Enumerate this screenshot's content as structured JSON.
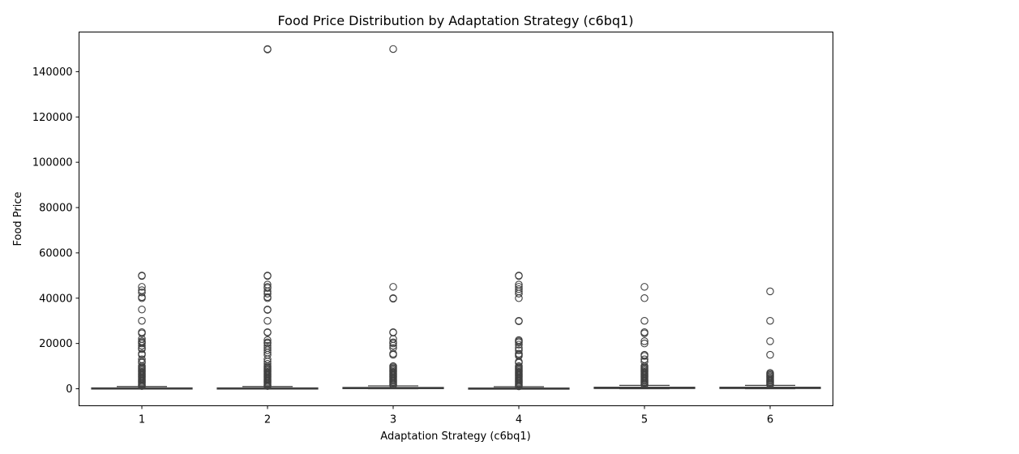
{
  "chart_data": {
    "type": "box",
    "title": "Food Price Distribution by Adaptation Strategy (c6bq1)",
    "xlabel": "Adaptation Strategy (c6bq1)",
    "ylabel": "Food Price",
    "categories": [
      "1",
      "2",
      "3",
      "4",
      "5",
      "6"
    ],
    "y_ticks": [
      0,
      20000,
      40000,
      60000,
      80000,
      100000,
      120000,
      140000
    ],
    "y_tick_labels": [
      "0",
      "20000",
      "40000",
      "60000",
      "80000",
      "100000",
      "120000",
      "140000"
    ],
    "ylim": [
      -7500,
      157500
    ],
    "grid": false,
    "box_color": "#4c72b0",
    "line_color": "#3f3f3f",
    "boxes": [
      {
        "category": "1",
        "whisker_low": 0,
        "q1": 50,
        "median": 200,
        "q3": 400,
        "whisker_high": 1000,
        "outliers": [
          50000,
          49800,
          45000,
          43500,
          42500,
          40500,
          40000,
          35000,
          30000,
          25000,
          24500,
          22000,
          21000,
          20500,
          20000,
          19000,
          18000,
          17500,
          15500,
          15000,
          13000,
          12000,
          11500,
          10000,
          9500,
          9000,
          8500,
          8000,
          7500,
          7000,
          6500,
          6000,
          5500,
          5000,
          4500,
          4000,
          3500,
          3000,
          2500,
          2000,
          1500,
          1200
        ]
      },
      {
        "category": "2",
        "whisker_low": 0,
        "q1": 50,
        "median": 200,
        "q3": 400,
        "whisker_high": 1000,
        "outliers": [
          150000,
          149800,
          50000,
          49800,
          46000,
          45000,
          44500,
          43000,
          42000,
          40500,
          40000,
          35000,
          34800,
          30000,
          25000,
          24800,
          21500,
          20500,
          20000,
          19000,
          18000,
          17000,
          16000,
          15000,
          13000,
          12000,
          11000,
          10000,
          9500,
          9000,
          8500,
          8000,
          7500,
          7000,
          6500,
          6000,
          5500,
          5000,
          4500,
          4000,
          3500,
          3000,
          2500,
          2000,
          1500,
          1200
        ]
      },
      {
        "category": "3",
        "whisker_low": 0,
        "q1": 50,
        "median": 300,
        "q3": 600,
        "whisker_high": 1300,
        "outliers": [
          150000,
          45000,
          40000,
          39800,
          25000,
          24800,
          22000,
          20500,
          20000,
          19000,
          18000,
          15500,
          15000,
          10000,
          9500,
          9000,
          8500,
          8000,
          7500,
          7000,
          6500,
          6000,
          5500,
          5000,
          4500,
          4000,
          3500,
          3000,
          2500,
          2000,
          1600
        ]
      },
      {
        "category": "4",
        "whisker_low": 0,
        "q1": 50,
        "median": 150,
        "q3": 350,
        "whisker_high": 900,
        "outliers": [
          50000,
          49800,
          46000,
          45000,
          44000,
          43000,
          42000,
          40000,
          30000,
          29800,
          21500,
          21000,
          20500,
          19500,
          18000,
          17000,
          15500,
          15000,
          14500,
          12000,
          11500,
          10000,
          9500,
          9000,
          8500,
          8000,
          7500,
          7000,
          6500,
          6000,
          5500,
          5000,
          4500,
          4000,
          3500,
          3000,
          2500,
          2000,
          1500,
          1100
        ]
      },
      {
        "category": "5",
        "whisker_low": 0,
        "q1": 100,
        "median": 400,
        "q3": 700,
        "whisker_high": 1500,
        "outliers": [
          45000,
          40000,
          30000,
          25000,
          24500,
          21000,
          20000,
          15000,
          14500,
          13000,
          12000,
          10000,
          9500,
          9000,
          8500,
          8000,
          7500,
          7000,
          6500,
          6000,
          5500,
          5000,
          4500,
          4000,
          3500,
          3000,
          2500,
          2000,
          1800
        ]
      },
      {
        "category": "6",
        "whisker_low": 0,
        "q1": 100,
        "median": 400,
        "q3": 700,
        "whisker_high": 1500,
        "outliers": [
          43000,
          30000,
          21000,
          15000,
          7000,
          6500,
          6000,
          5500,
          5000,
          4500,
          4000,
          3500,
          3000,
          2500,
          2000,
          1800
        ]
      }
    ]
  }
}
